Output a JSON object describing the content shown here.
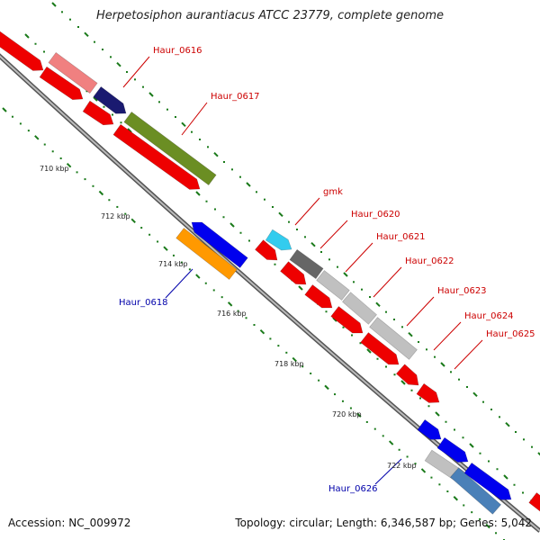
{
  "title": "Herpetosiphon aurantiacus ATCC 23779, complete genome",
  "footer": {
    "accession": "Accession: NC_009972",
    "summary": "Topology: circular; Length: 6,346,587 bp; Genes: 5,042"
  },
  "colors": {
    "backbone": "#8a8a8a",
    "tick": "#1a7a1a",
    "label_red": "#cc0000",
    "label_blue": "#0000aa",
    "red": "#ee0000",
    "pink": "#f08080",
    "navy": "#1a1a70",
    "olive": "#6b8e23",
    "cyan": "#33ccee",
    "blue": "#0000ee",
    "orange": "#ff9900",
    "darkgray": "#666666",
    "lightgray": "#c0c0c0",
    "steelblue": "#4a80b8"
  },
  "kbp_labels": [
    "710 kbp",
    "712 kbp",
    "714 kbp",
    "716 kbp",
    "718 kbp",
    "720 kbp",
    "722 kbp"
  ],
  "gene_labels": [
    {
      "name": "Haur_0616",
      "color": "label_red"
    },
    {
      "name": "Haur_0617",
      "color": "label_red"
    },
    {
      "name": "gmk",
      "color": "label_red"
    },
    {
      "name": "Haur_0620",
      "color": "label_red"
    },
    {
      "name": "Haur_0621",
      "color": "label_red"
    },
    {
      "name": "Haur_0622",
      "color": "label_red"
    },
    {
      "name": "Haur_0623",
      "color": "label_red"
    },
    {
      "name": "Haur_0624",
      "color": "label_red"
    },
    {
      "name": "Haur_0625",
      "color": "label_red"
    },
    {
      "name": "Haur_0618",
      "color": "label_blue"
    },
    {
      "name": "Haur_0626",
      "color": "label_blue"
    }
  ]
}
